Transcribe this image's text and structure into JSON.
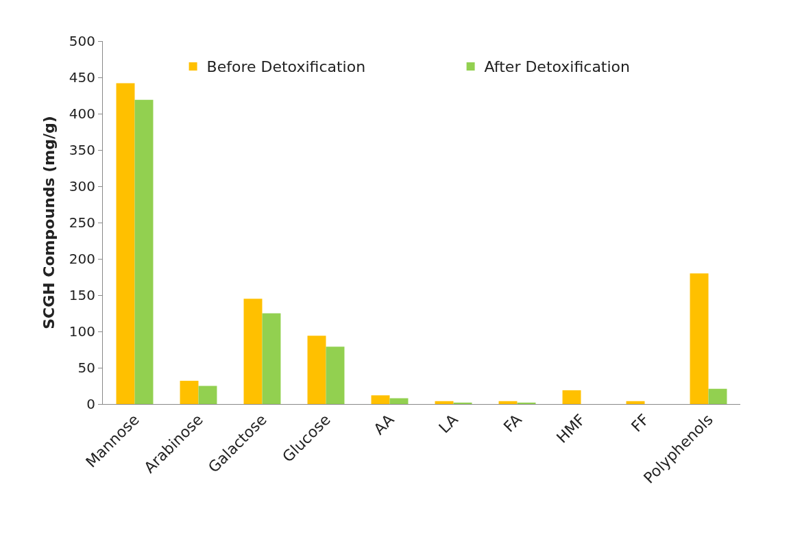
{
  "chart_data": {
    "type": "bar",
    "ylabel": "SCGH Compounds (mg/g)",
    "categories": [
      "Mannose",
      "Arabinose",
      "Galactose",
      "Glucose",
      "AA",
      "LA",
      "FA",
      "HMF",
      "FF",
      "Polyphenols"
    ],
    "series": [
      {
        "name": "Before Detoxification",
        "color": "#ffc000",
        "values": [
          442,
          32,
          145,
          94,
          12,
          4,
          4,
          19,
          4,
          180
        ]
      },
      {
        "name": "After Detoxification",
        "color": "#92d050",
        "values": [
          419,
          25,
          125,
          79,
          8,
          2,
          2,
          0,
          0,
          21
        ]
      }
    ],
    "ylim": [
      0,
      500
    ],
    "yticks": [
      0,
      50,
      100,
      150,
      200,
      250,
      300,
      350,
      400,
      450,
      500
    ],
    "legend": "top"
  }
}
